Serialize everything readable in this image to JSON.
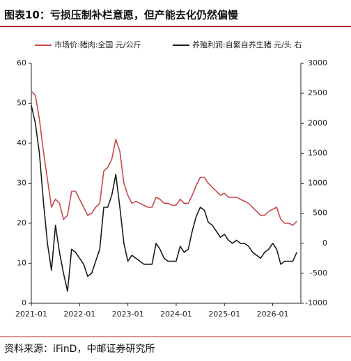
{
  "chart_data": {
    "type": "line",
    "title": "图表10：亏损压制补栏意愿，但产能去化仍然偏慢",
    "source": "资料来源：iFinD，中邮证券研究所",
    "x": [
      "2021-01",
      "2021-02",
      "2021-03",
      "2021-04",
      "2021-05",
      "2021-06",
      "2021-07",
      "2021-08",
      "2021-09",
      "2021-10",
      "2021-11",
      "2021-12",
      "2022-01",
      "2022-02",
      "2022-03",
      "2022-04",
      "2022-05",
      "2022-06",
      "2022-07",
      "2022-08",
      "2022-09",
      "2022-10",
      "2022-11",
      "2022-12",
      "2023-01",
      "2023-02",
      "2023-03",
      "2023-04",
      "2023-05",
      "2023-06",
      "2023-07",
      "2023-08",
      "2023-09",
      "2023-10",
      "2023-11",
      "2023-12",
      "2024-01",
      "2024-02",
      "2024-03",
      "2024-04",
      "2024-05",
      "2024-06",
      "2024-07",
      "2024-08",
      "2024-09",
      "2024-10",
      "2024-11",
      "2024-12",
      "2025-01",
      "2025-02",
      "2025-03",
      "2025-04",
      "2025-05",
      "2025-06",
      "2025-07",
      "2025-08",
      "2025-09",
      "2025-10",
      "2025-11",
      "2025-12",
      "2026-01",
      "2026-02",
      "2026-03",
      "2026-04",
      "2026-05",
      "2026-06",
      "2026-07"
    ],
    "series": [
      {
        "name": "市场价:猪肉:全国 元/公斤",
        "color": "#c9484b",
        "axis": "y",
        "values": [
          53,
          52,
          46,
          38,
          31,
          24,
          26,
          25,
          21,
          22,
          28,
          28,
          26,
          24,
          22,
          22.5,
          24,
          25,
          33,
          34,
          36,
          41,
          38,
          30,
          27,
          25,
          25.5,
          25,
          24.5,
          24,
          24,
          26.5,
          26,
          25,
          25,
          24.5,
          24.5,
          26,
          25,
          25,
          27,
          29.5,
          31.5,
          31.5,
          30,
          29,
          28,
          27,
          27.5,
          26.5,
          26.5,
          26.5,
          26,
          25.5,
          25,
          24,
          23,
          22,
          22,
          23,
          23.5,
          24,
          21,
          20,
          20,
          19.5,
          20.5
        ]
      },
      {
        "name": "养殖利润:自繁自养生猪 元/头 右",
        "color": "#1a1a1a",
        "axis": "y2",
        "values": [
          2300,
          2000,
          1500,
          700,
          0,
          -450,
          300,
          -150,
          -500,
          -800,
          -100,
          -150,
          -250,
          -350,
          -550,
          -500,
          -300,
          -100,
          600,
          600,
          800,
          1150,
          600,
          0,
          -300,
          -200,
          -250,
          -300,
          -350,
          -350,
          -350,
          0,
          -100,
          -250,
          -300,
          -300,
          -300,
          -50,
          -150,
          -100,
          200,
          450,
          600,
          550,
          350,
          300,
          200,
          100,
          150,
          50,
          0,
          50,
          0,
          0,
          -50,
          -150,
          -200,
          -250,
          -150,
          -100,
          0,
          -100,
          -350,
          -300,
          -300,
          -300,
          -150
        ]
      }
    ],
    "xlim": [
      "2021-01",
      "2026-08"
    ],
    "xticks": [
      "2021-01",
      "2022-01",
      "2023-01",
      "2024-01",
      "2025-01",
      "2026-01"
    ],
    "ylim": [
      0,
      60
    ],
    "yticks": [
      0,
      10,
      20,
      30,
      40,
      50,
      60
    ],
    "y2lim": [
      -1000,
      3000
    ],
    "y2ticks": [
      -1000,
      -500,
      0,
      500,
      1000,
      1500,
      2000,
      2500,
      3000
    ],
    "grid": false
  }
}
